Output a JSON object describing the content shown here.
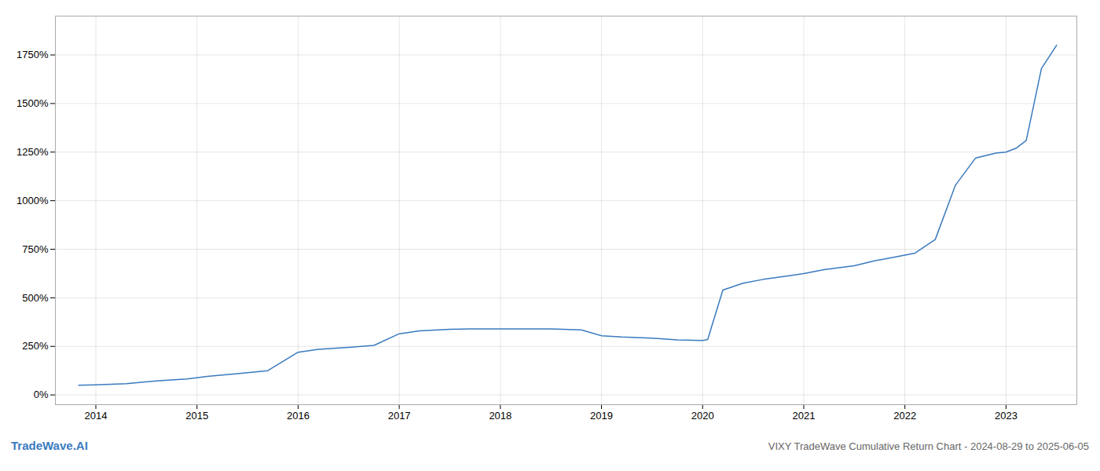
{
  "chart_data": {
    "type": "line",
    "title": "VIXY TradeWave Cumulative Return Chart - 2024-08-29 to 2025-06-05",
    "annotations": [
      "TradeWave.AI"
    ],
    "x": [
      2013.83,
      2014.0,
      2014.3,
      2014.6,
      2014.9,
      2015.1,
      2015.4,
      2015.7,
      2016.0,
      2016.2,
      2016.5,
      2016.75,
      2017.0,
      2017.2,
      2017.5,
      2017.7,
      2018.0,
      2018.2,
      2018.5,
      2018.8,
      2019.0,
      2019.2,
      2019.5,
      2019.75,
      2020.0,
      2020.05,
      2020.2,
      2020.4,
      2020.6,
      2020.8,
      2021.0,
      2021.2,
      2021.5,
      2021.7,
      2021.9,
      2022.1,
      2022.3,
      2022.5,
      2022.7,
      2022.9,
      2023.0,
      2023.1,
      2023.2,
      2023.35,
      2023.5
    ],
    "values": [
      50,
      52,
      58,
      72,
      82,
      95,
      110,
      125,
      220,
      235,
      245,
      255,
      315,
      330,
      338,
      340,
      340,
      340,
      340,
      335,
      305,
      298,
      292,
      283,
      280,
      285,
      540,
      575,
      595,
      610,
      625,
      645,
      665,
      690,
      710,
      730,
      800,
      1080,
      1220,
      1245,
      1250,
      1270,
      1310,
      1680,
      1800
    ],
    "color": "#3a7abf",
    "xlim": [
      2013.6,
      2023.7
    ],
    "xticks": [
      2014,
      2015,
      2016,
      2017,
      2018,
      2019,
      2020,
      2021,
      2022,
      2023
    ],
    "ylim": [
      -50,
      1950
    ],
    "yticks": [
      {
        "value": 0,
        "label": "0%"
      },
      {
        "value": 250,
        "label": "250%"
      },
      {
        "value": 500,
        "label": "500%"
      },
      {
        "value": 750,
        "label": "750%"
      },
      {
        "value": 1000,
        "label": "1000%"
      },
      {
        "value": 1250,
        "label": "1250%"
      },
      {
        "value": 1500,
        "label": "1500%"
      },
      {
        "value": 1750,
        "label": "1750%"
      }
    ],
    "grid": true
  }
}
